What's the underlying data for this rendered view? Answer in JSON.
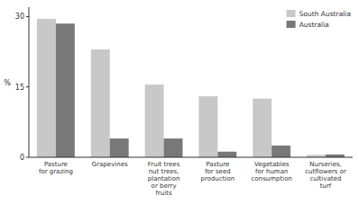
{
  "chart_data": {
    "type": "bar",
    "categories": [
      "Pasture\nfor grazing",
      "Grapevines",
      "Fruit trees\nnut trees,\nplantation\nor berry\nfruits",
      "Pasture\nfor seed\nproduction",
      "Vegetables\nfor human\nconsumption",
      "Nurseries,\ncutflowers or\ncultivated\nturf"
    ],
    "series": [
      {
        "name": "South Australia",
        "color": "#c8c8c8",
        "values": [
          29.5,
          23.0,
          15.5,
          13.0,
          12.5,
          0.5
        ]
      },
      {
        "name": "Australia",
        "color": "#787878",
        "values": [
          28.5,
          4.0,
          4.0,
          1.2,
          2.5,
          0.6
        ]
      }
    ],
    "y_label": "%",
    "ylim": [
      0,
      32
    ],
    "yticks": [
      0,
      15,
      30
    ],
    "grid": false,
    "legend": "upper right"
  }
}
